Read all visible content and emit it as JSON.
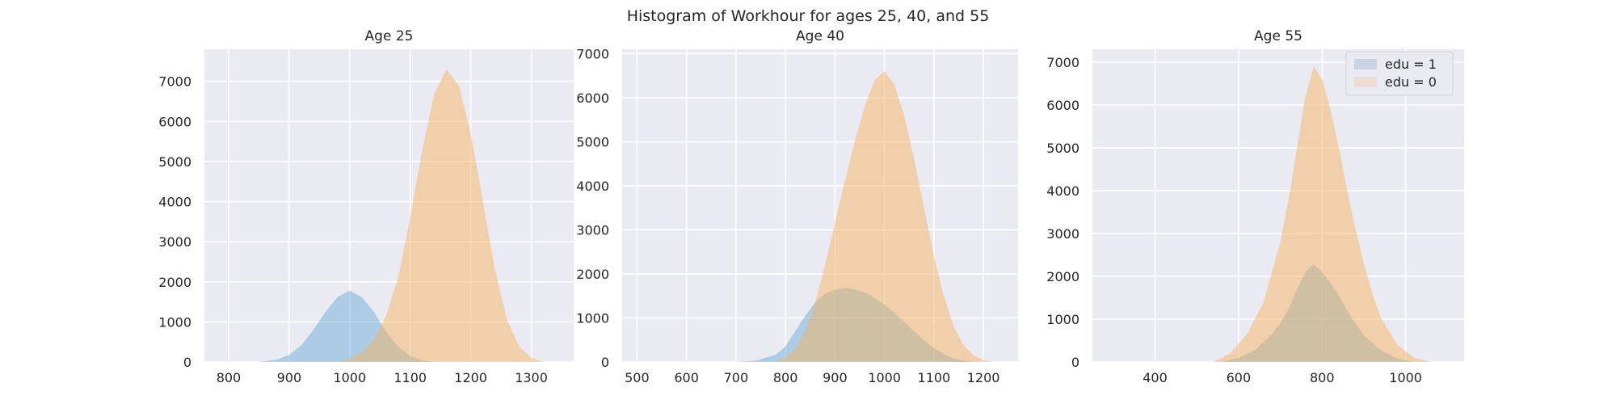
{
  "figure": {
    "title": "Histogram of Workhour for ages 25, 40, and 55"
  },
  "colors": {
    "background": "#eaeaf2",
    "grid": "#ffffff",
    "edu1": "#6baed6",
    "edu0": "#f5b461",
    "legend_edu1_patch": "#c8d3e6",
    "legend_edu0_patch": "#ecdcd4"
  },
  "chart_data": [
    {
      "type": "area",
      "title": "Age 25",
      "xlabel": "",
      "ylabel": "",
      "xlim": [
        760,
        1370
      ],
      "ylim": [
        0,
        7800
      ],
      "xticks": [
        800,
        900,
        1000,
        1100,
        1200,
        1300
      ],
      "yticks": [
        0,
        1000,
        2000,
        3000,
        4000,
        5000,
        6000,
        7000
      ],
      "grid": true,
      "series": [
        {
          "name": "edu = 1",
          "x": [
            850,
            880,
            900,
            920,
            940,
            960,
            980,
            1000,
            1020,
            1040,
            1060,
            1080,
            1100,
            1120,
            1140
          ],
          "values": [
            0,
            60,
            180,
            420,
            800,
            1250,
            1620,
            1780,
            1620,
            1250,
            760,
            380,
            150,
            40,
            0
          ]
        },
        {
          "name": "edu = 0",
          "x": [
            980,
            1000,
            1020,
            1040,
            1060,
            1080,
            1100,
            1120,
            1140,
            1160,
            1180,
            1200,
            1220,
            1240,
            1260,
            1280,
            1300,
            1320
          ],
          "values": [
            0,
            80,
            240,
            560,
            1150,
            2100,
            3600,
            5300,
            6700,
            7300,
            6900,
            5700,
            4000,
            2300,
            1050,
            380,
            100,
            0
          ]
        }
      ]
    },
    {
      "type": "area",
      "title": "Age 40",
      "xlabel": "",
      "ylabel": "",
      "xlim": [
        470,
        1270
      ],
      "ylim": [
        0,
        7100
      ],
      "xticks": [
        500,
        600,
        700,
        800,
        900,
        1000,
        1100,
        1200
      ],
      "yticks": [
        0,
        1000,
        2000,
        3000,
        4000,
        5000,
        6000,
        7000
      ],
      "grid": true,
      "series": [
        {
          "name": "edu = 1",
          "x": [
            700,
            740,
            780,
            800,
            820,
            840,
            860,
            880,
            900,
            920,
            940,
            960,
            980,
            1000,
            1020,
            1040,
            1060,
            1080,
            1100,
            1120,
            1140,
            1160,
            1180
          ],
          "values": [
            0,
            30,
            160,
            350,
            700,
            1050,
            1350,
            1550,
            1640,
            1680,
            1650,
            1580,
            1450,
            1300,
            1120,
            900,
            690,
            490,
            320,
            180,
            80,
            30,
            0
          ]
        },
        {
          "name": "edu = 0",
          "x": [
            780,
            800,
            820,
            840,
            860,
            880,
            900,
            920,
            940,
            960,
            980,
            1000,
            1020,
            1040,
            1060,
            1080,
            1100,
            1120,
            1140,
            1160,
            1180,
            1200,
            1220
          ],
          "values": [
            0,
            100,
            300,
            700,
            1350,
            2200,
            3150,
            4100,
            5000,
            5800,
            6400,
            6600,
            6300,
            5600,
            4600,
            3500,
            2400,
            1500,
            800,
            380,
            150,
            40,
            0
          ]
        }
      ]
    },
    {
      "type": "area",
      "title": "Age 55",
      "xlabel": "",
      "ylabel": "",
      "xlim": [
        250,
        1140
      ],
      "ylim": [
        0,
        7300
      ],
      "xticks": [
        400,
        600,
        800,
        1000
      ],
      "yticks": [
        0,
        1000,
        2000,
        3000,
        4000,
        5000,
        6000,
        7000
      ],
      "grid": true,
      "legend": {
        "placement": "upper-right",
        "entries": [
          "edu = 1",
          "edu = 0"
        ]
      },
      "series": [
        {
          "name": "edu = 1",
          "x": [
            560,
            600,
            640,
            680,
            700,
            720,
            740,
            760,
            780,
            800,
            820,
            840,
            860,
            880,
            900,
            940,
            980,
            1020
          ],
          "values": [
            0,
            100,
            280,
            650,
            900,
            1250,
            1700,
            2100,
            2280,
            2100,
            1850,
            1550,
            1200,
            900,
            620,
            280,
            80,
            0
          ]
        },
        {
          "name": "edu = 0",
          "x": [
            540,
            580,
            620,
            660,
            700,
            720,
            740,
            760,
            780,
            800,
            820,
            840,
            860,
            880,
            900,
            920,
            940,
            980,
            1020,
            1060
          ],
          "values": [
            0,
            200,
            650,
            1400,
            2800,
            3800,
            5000,
            6200,
            6900,
            6600,
            5900,
            5000,
            4000,
            3100,
            2300,
            1600,
            1050,
            400,
            100,
            0
          ]
        }
      ]
    }
  ]
}
